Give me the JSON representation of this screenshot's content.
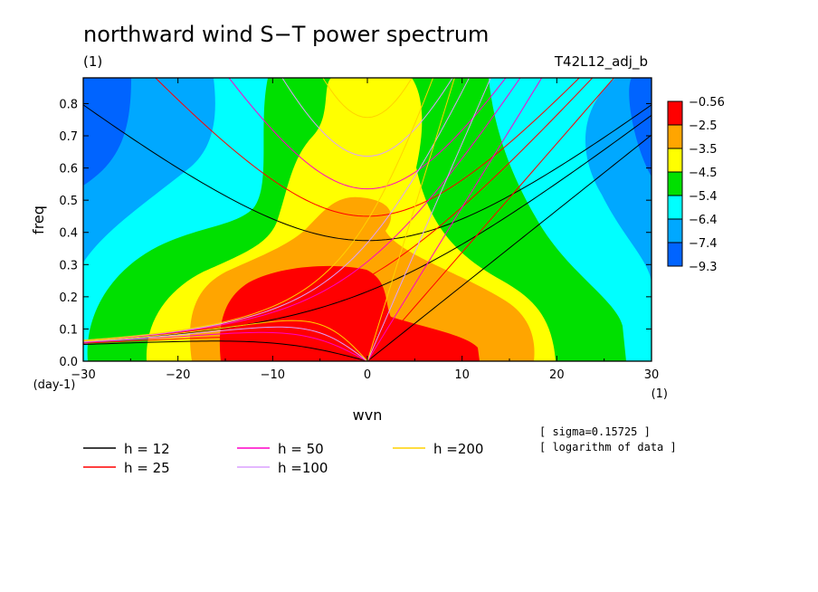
{
  "chart_data": {
    "type": "heatmap",
    "title": "northward wind S−T power spectrum",
    "subtitle_left": "(1)",
    "subtitle_right": "T42L12_adj_b",
    "xlabel": "wvn",
    "ylabel": "freq",
    "x_unit": "(1)",
    "y_unit": "(day-1)",
    "xlim": [
      -30,
      30
    ],
    "ylim": [
      0,
      0.88
    ],
    "x_ticks": [
      "−30",
      "−20",
      "−10",
      "0",
      "10",
      "20",
      "30"
    ],
    "x_tick_values": [
      -30,
      -20,
      -10,
      0,
      10,
      20,
      30
    ],
    "y_ticks": [
      "0.0",
      "0.1",
      "0.2",
      "0.3",
      "0.4",
      "0.5",
      "0.6",
      "0.7",
      "0.8"
    ],
    "y_tick_values": [
      0,
      0.1,
      0.2,
      0.3,
      0.4,
      0.5,
      0.6,
      0.7,
      0.8
    ],
    "colorbar": {
      "labels": [
        "−0.56",
        "−2.5",
        "−3.5",
        "−4.5",
        "−5.4",
        "−6.4",
        "−7.4",
        "−9.3"
      ],
      "levels": [
        -0.56,
        -2.5,
        -3.5,
        -4.5,
        -5.4,
        -6.4,
        -7.4,
        -9.3
      ],
      "colors": [
        "#ff0000",
        "#ffa500",
        "#ffff00",
        "#00e000",
        "#00ffff",
        "#00a8ff",
        "#0064ff"
      ]
    },
    "notes": [
      "[ sigma=0.15725 ]",
      "[ logarithm of data ]"
    ],
    "dispersion_curves": [
      {
        "label": "h = 12",
        "h": 12,
        "color": "#000000"
      },
      {
        "label": "h = 25",
        "h": 25,
        "color": "#ff0000"
      },
      {
        "label": "h = 50",
        "h": 50,
        "color": "#ff00c8"
      },
      {
        "label": "h =100",
        "h": 100,
        "color": "#dca0ff"
      },
      {
        "label": "h =200",
        "h": 200,
        "color": "#ffd200"
      }
    ]
  }
}
